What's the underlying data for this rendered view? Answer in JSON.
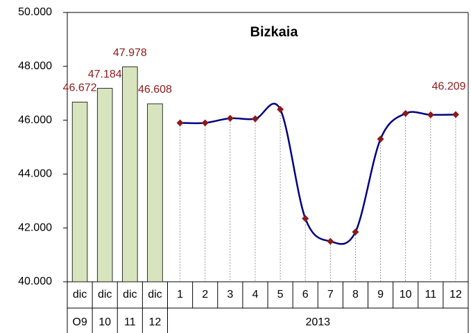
{
  "chart_data": {
    "type": "combo",
    "title": "Bizkaia",
    "categories": [
      "dic",
      "dic",
      "dic",
      "dic",
      "1",
      "2",
      "3",
      "4",
      "5",
      "6",
      "7",
      "8",
      "9",
      "10",
      "11",
      "12"
    ],
    "category_groups": [
      "O9",
      "10",
      "11",
      "12",
      "2013"
    ],
    "series": [
      {
        "type": "bar",
        "color": "#d7e4bd",
        "values": [
          46672,
          47184,
          47978,
          46608,
          null,
          null,
          null,
          null,
          null,
          null,
          null,
          null,
          null,
          null,
          null,
          null
        ],
        "value_labels": [
          "46.672",
          "47.184",
          "47.978",
          "46.608",
          null,
          null,
          null,
          null,
          null,
          null,
          null,
          null,
          null,
          null,
          null,
          null
        ]
      },
      {
        "type": "line",
        "color": "#000080",
        "marker_color": "#8b1a1a",
        "values": [
          null,
          null,
          null,
          null,
          45900,
          45900,
          46070,
          46050,
          46400,
          42350,
          41500,
          41850,
          45300,
          46250,
          46200,
          46209
        ],
        "value_labels": [
          null,
          null,
          null,
          null,
          null,
          null,
          null,
          null,
          null,
          null,
          null,
          null,
          null,
          null,
          null,
          "46.209"
        ]
      }
    ],
    "ylim": [
      40000,
      50000
    ],
    "yticks": [
      {
        "value": 40000,
        "label": "40.000"
      },
      {
        "value": 42000,
        "label": "42.000"
      },
      {
        "value": 44000,
        "label": "44.000"
      },
      {
        "value": 46000,
        "label": "46.000"
      },
      {
        "value": 48000,
        "label": "48.000"
      },
      {
        "value": 50000,
        "label": "50.000"
      }
    ],
    "grid": false
  }
}
